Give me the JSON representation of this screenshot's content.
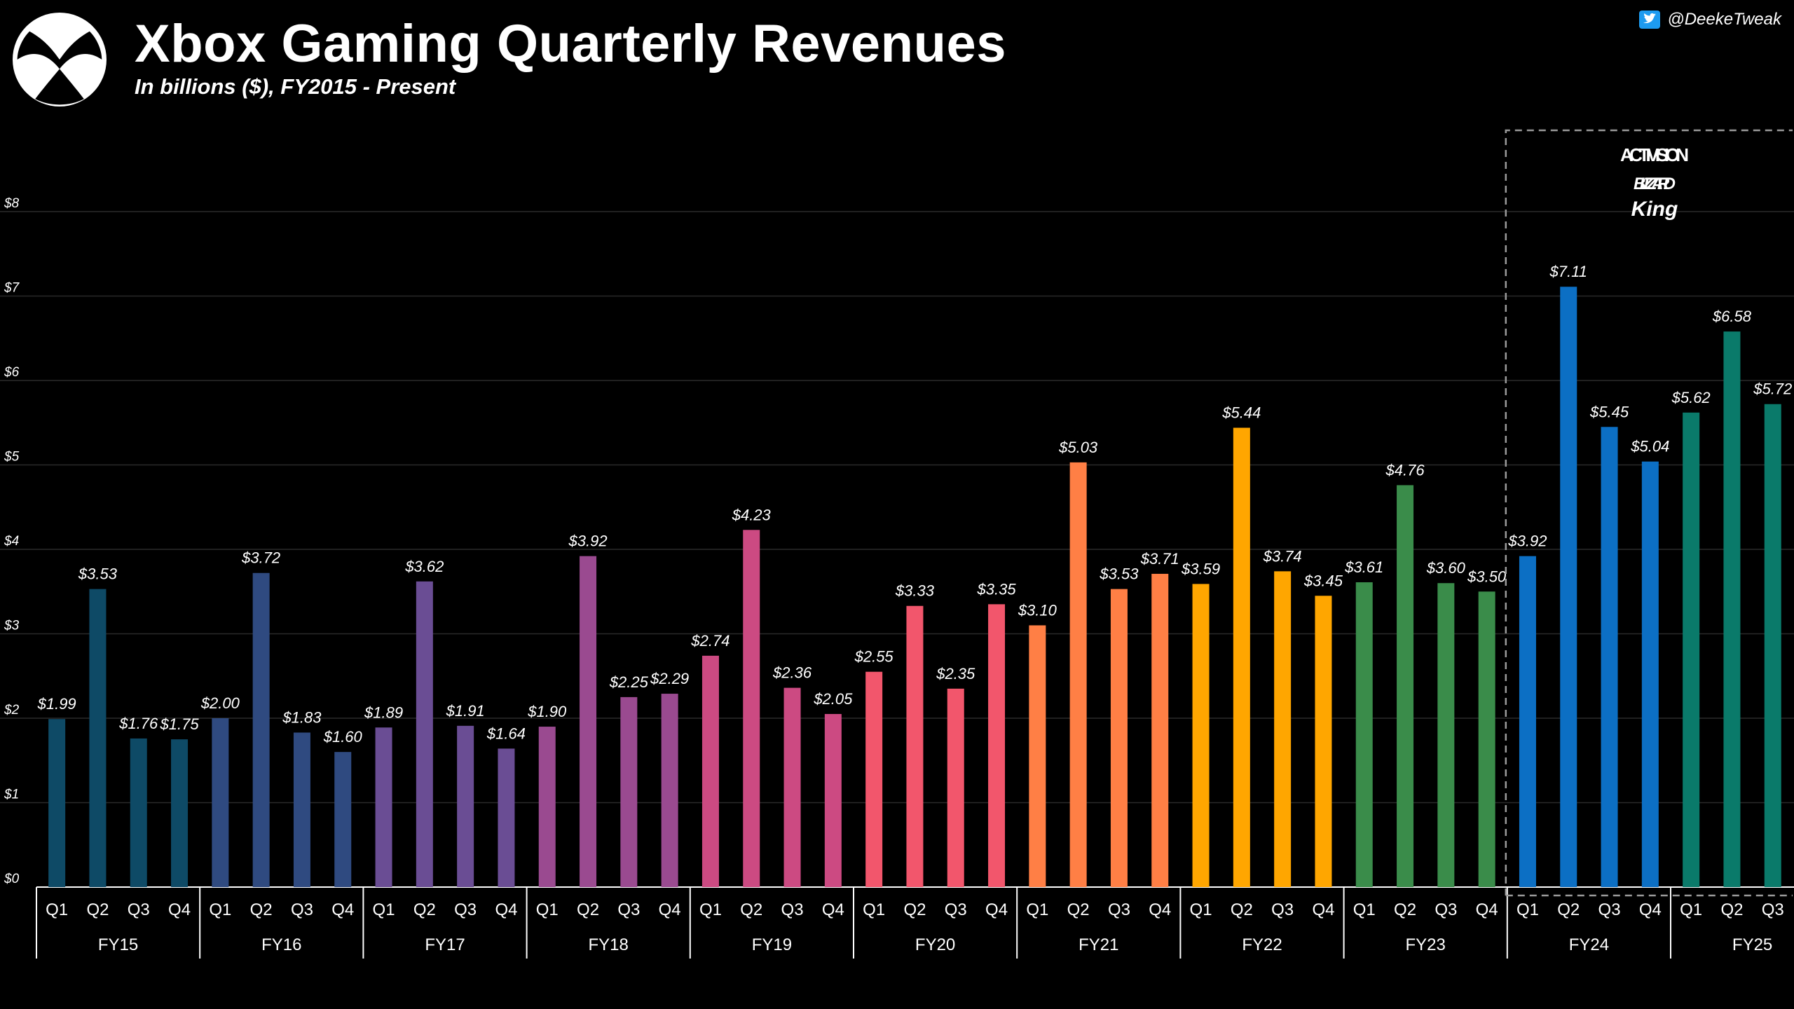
{
  "header": {
    "title": "Xbox Gaming Quarterly Revenues",
    "subtitle": "In billions ($), FY2015 - Present",
    "handle": "@DeekeTweak",
    "logo_icon": "xbox-logo-icon",
    "social_icon": "twitter-icon"
  },
  "annotation": {
    "label_lines": [
      "ACTIVISION",
      "BLIZZARD",
      "King"
    ],
    "start_quarter_index": 36,
    "end_quarter_index": 42
  },
  "chart_data": {
    "type": "bar",
    "title": "Xbox Gaming Quarterly Revenues",
    "subtitle": "In billions ($), FY2015 - Present",
    "xlabel": "",
    "ylabel": "",
    "ylim": [
      0,
      8
    ],
    "y_ticks": [
      0,
      1,
      2,
      3,
      4,
      5,
      6,
      7,
      8
    ],
    "y_tick_labels": [
      "$0",
      "$1",
      "$2",
      "$3",
      "$4",
      "$5",
      "$6",
      "$7",
      "$8"
    ],
    "grid": true,
    "value_prefix": "$",
    "quarter_labels": [
      "Q1",
      "Q2",
      "Q3",
      "Q4"
    ],
    "fiscal_years": [
      {
        "label": "FY15",
        "color": "#0e4a66",
        "values": [
          1.99,
          3.53,
          1.76,
          1.75
        ]
      },
      {
        "label": "FY16",
        "color": "#2f4a80",
        "values": [
          2.0,
          3.72,
          1.83,
          1.6
        ]
      },
      {
        "label": "FY17",
        "color": "#6a4d94",
        "values": [
          1.89,
          3.62,
          1.91,
          1.64
        ]
      },
      {
        "label": "FY18",
        "color": "#9a4a90",
        "values": [
          1.9,
          3.92,
          2.25,
          2.29
        ]
      },
      {
        "label": "FY19",
        "color": "#cc4a82",
        "values": [
          2.74,
          4.23,
          2.36,
          2.05
        ]
      },
      {
        "label": "FY20",
        "color": "#f2566c",
        "values": [
          2.55,
          3.33,
          2.35,
          3.35
        ]
      },
      {
        "label": "FY21",
        "color": "#ff7f45",
        "values": [
          3.1,
          5.03,
          3.53,
          3.71
        ]
      },
      {
        "label": "FY22",
        "color": "#ffa600",
        "values": [
          3.59,
          5.44,
          3.74,
          3.45
        ]
      },
      {
        "label": "FY23",
        "color": "#3a8c4a",
        "values": [
          3.61,
          4.76,
          3.6,
          3.5
        ]
      },
      {
        "label": "FY24",
        "color": "#0c6fc4",
        "values": [
          3.92,
          7.11,
          5.45,
          5.04
        ]
      },
      {
        "label": "FY25",
        "color": "#0a7a6a",
        "values": [
          5.62,
          6.58,
          5.72
        ]
      }
    ]
  }
}
